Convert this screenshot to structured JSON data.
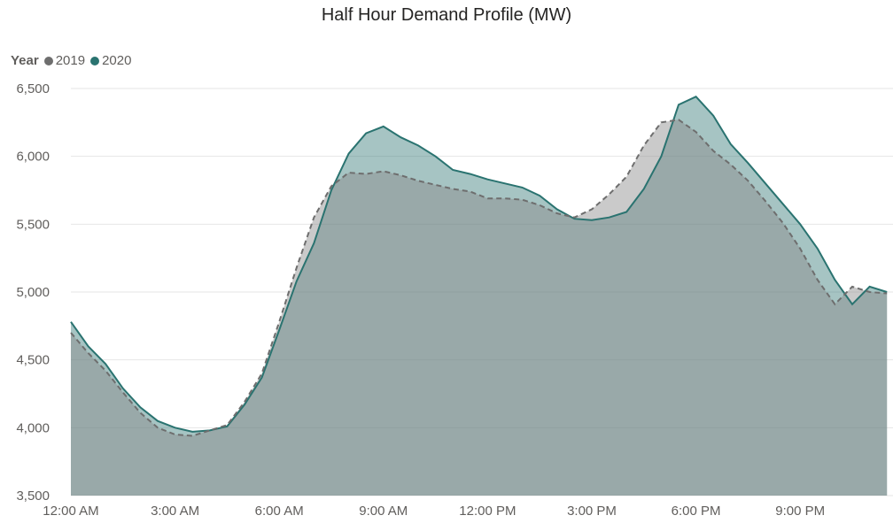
{
  "chart_data": {
    "type": "area",
    "title": "Half Hour Demand Profile (MW)",
    "legend_title": "Year",
    "legend_position": "top-left",
    "ylim": [
      3500,
      6500
    ],
    "y_ticks": [
      3500,
      4000,
      4500,
      5000,
      5500,
      6000,
      6500
    ],
    "y_tick_labels": [
      "3,500",
      "4,000",
      "4,500",
      "5,000",
      "5,500",
      "6,000",
      "6,500"
    ],
    "x_tick_hours": [
      0,
      3,
      6,
      9,
      12,
      15,
      18,
      21
    ],
    "x_tick_labels": [
      "12:00 AM",
      "3:00 AM",
      "6:00 AM",
      "9:00 AM",
      "12:00 PM",
      "3:00 PM",
      "6:00 PM",
      "9:00 PM"
    ],
    "x_hours": [
      0,
      0.5,
      1,
      1.5,
      2,
      2.5,
      3,
      3.5,
      4,
      4.5,
      5,
      5.5,
      6,
      6.5,
      7,
      7.5,
      8,
      8.5,
      9,
      9.5,
      10,
      10.5,
      11,
      11.5,
      12,
      12.5,
      13,
      13.5,
      14,
      14.5,
      15,
      15.5,
      16,
      16.5,
      17,
      17.5,
      18,
      18.5,
      19,
      19.5,
      20,
      20.5,
      21,
      21.5,
      22,
      22.5,
      23,
      23.5
    ],
    "grid": true,
    "series": [
      {
        "name": "2019",
        "color": "#6e6e6e",
        "style": "dashed",
        "values": [
          4700,
          4550,
          4420,
          4260,
          4110,
          4000,
          3950,
          3940,
          3980,
          4020,
          4190,
          4400,
          4780,
          5180,
          5550,
          5780,
          5880,
          5870,
          5890,
          5860,
          5820,
          5790,
          5760,
          5740,
          5690,
          5690,
          5680,
          5640,
          5580,
          5550,
          5610,
          5720,
          5850,
          6080,
          6250,
          6270,
          6180,
          6040,
          5940,
          5820,
          5670,
          5510,
          5320,
          5090,
          4910,
          5040,
          5000,
          4990
        ]
      },
      {
        "name": "2020",
        "color": "#2a7370",
        "style": "solid",
        "values": [
          4780,
          4600,
          4470,
          4290,
          4150,
          4050,
          4000,
          3970,
          3980,
          4010,
          4170,
          4370,
          4720,
          5080,
          5360,
          5750,
          6020,
          6170,
          6220,
          6140,
          6080,
          6000,
          5900,
          5870,
          5830,
          5800,
          5770,
          5710,
          5610,
          5540,
          5530,
          5550,
          5590,
          5760,
          6000,
          6380,
          6440,
          6300,
          6090,
          5950,
          5800,
          5650,
          5500,
          5320,
          5090,
          4910,
          5040,
          5000
        ]
      }
    ]
  }
}
